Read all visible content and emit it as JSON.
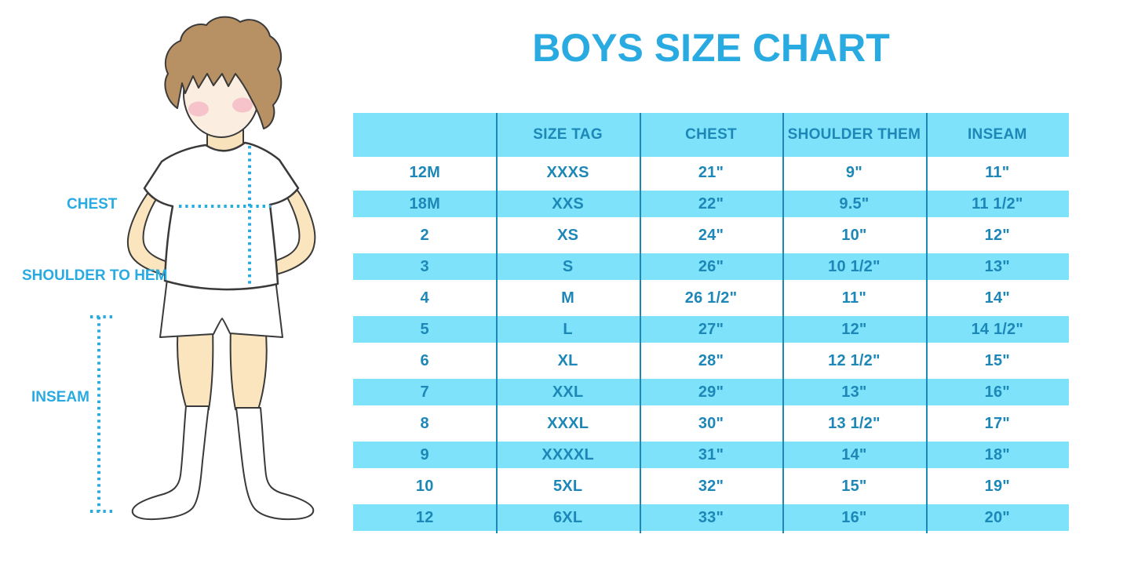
{
  "title": "BOYS SIZE CHART",
  "colors": {
    "accent_blue": "#29ABE2",
    "table_text_blue": "#1D87B8",
    "row_stripe_blue": "#7DE2FA",
    "divider_blue": "#1D87B8",
    "hair_brown": "#B79164",
    "skin": "#FBE5BE",
    "face_skin": "#FCEDE1",
    "cheek_pink": "#F2A6BD"
  },
  "figure": {
    "illustration": "cartoon-boy-standing-front",
    "labels": {
      "chest": "CHEST",
      "shoulder_to_hem": "SHOULDER TO HEM",
      "inseam": "INSEAM"
    }
  },
  "chart_data": {
    "type": "table",
    "title": "BOYS SIZE CHART",
    "columns": [
      "",
      "SIZE TAG",
      "CHEST",
      "SHOULDER THEM",
      "INSEAM"
    ],
    "rows": [
      [
        "12M",
        "XXXS",
        "21\"",
        "9\"",
        "11\""
      ],
      [
        "18M",
        "XXS",
        "22\"",
        "9.5\"",
        "11 1/2\""
      ],
      [
        "2",
        "XS",
        "24\"",
        "10\"",
        "12\""
      ],
      [
        "3",
        "S",
        "26\"",
        "10 1/2\"",
        "13\""
      ],
      [
        "4",
        "M",
        "26 1/2\"",
        "11\"",
        "14\""
      ],
      [
        "5",
        "L",
        "27\"",
        "12\"",
        "14 1/2\""
      ],
      [
        "6",
        "XL",
        "28\"",
        "12 1/2\"",
        "15\""
      ],
      [
        "7",
        "XXL",
        "29\"",
        "13\"",
        "16\""
      ],
      [
        "8",
        "XXXL",
        "30\"",
        "13 1/2\"",
        "17\""
      ],
      [
        "9",
        "XXXXL",
        "31\"",
        "14\"",
        "18\""
      ],
      [
        "10",
        "5XL",
        "32\"",
        "15\"",
        "19\""
      ],
      [
        "12",
        "6XL",
        "33\"",
        "16\"",
        "20\""
      ]
    ]
  }
}
